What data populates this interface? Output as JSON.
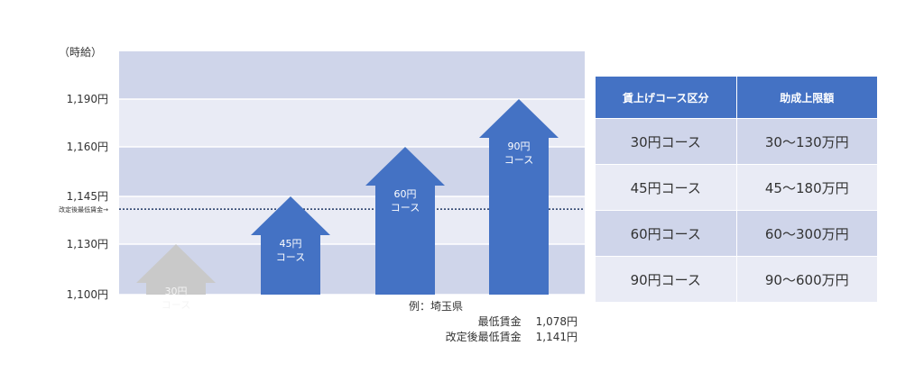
{
  "chart_data": {
    "type": "bar",
    "unit_label": "（時給）",
    "y_ticks": [
      {
        "value": 1100,
        "label": "1,100円"
      },
      {
        "value": 1130,
        "label": "1,130円"
      },
      {
        "value": 1145,
        "label": "1,145円"
      },
      {
        "value": 1160,
        "label": "1,160円"
      },
      {
        "value": 1190,
        "label": "1,190円"
      }
    ],
    "ylim": [
      1100,
      1220
    ],
    "reference_line": {
      "value": 1141,
      "label": "改定後最低賃金→"
    },
    "categories": [
      "30円コース",
      "45円コース",
      "60円コース",
      "90円コース"
    ],
    "values": [
      1130,
      1145,
      1160,
      1190
    ],
    "bar_labels": [
      [
        "30円",
        "コース"
      ],
      [
        "45円",
        "コース"
      ],
      [
        "60円",
        "コース"
      ],
      [
        "90円",
        "コース"
      ]
    ],
    "faded": [
      true,
      false,
      false,
      false
    ],
    "colors": {
      "bar": "#4472c4",
      "faded_bar": "#c9c9c9",
      "band_dark": "#cfd5ea",
      "band_light": "#e9ebf5",
      "reference_line": "#203864"
    }
  },
  "notes": {
    "example": "例：埼玉県",
    "row1_label": "最低賃金",
    "row1_value": "1,078円",
    "row2_label": "改定後最低賃金",
    "row2_value": "1,141円"
  },
  "table": {
    "headers": [
      "賃上げコース区分",
      "助成上限額"
    ],
    "rows": [
      [
        "30円コース",
        "30～130万円"
      ],
      [
        "45円コース",
        "45～180万円"
      ],
      [
        "60円コース",
        "60～300万円"
      ],
      [
        "90円コース",
        "90～600万円"
      ]
    ]
  }
}
